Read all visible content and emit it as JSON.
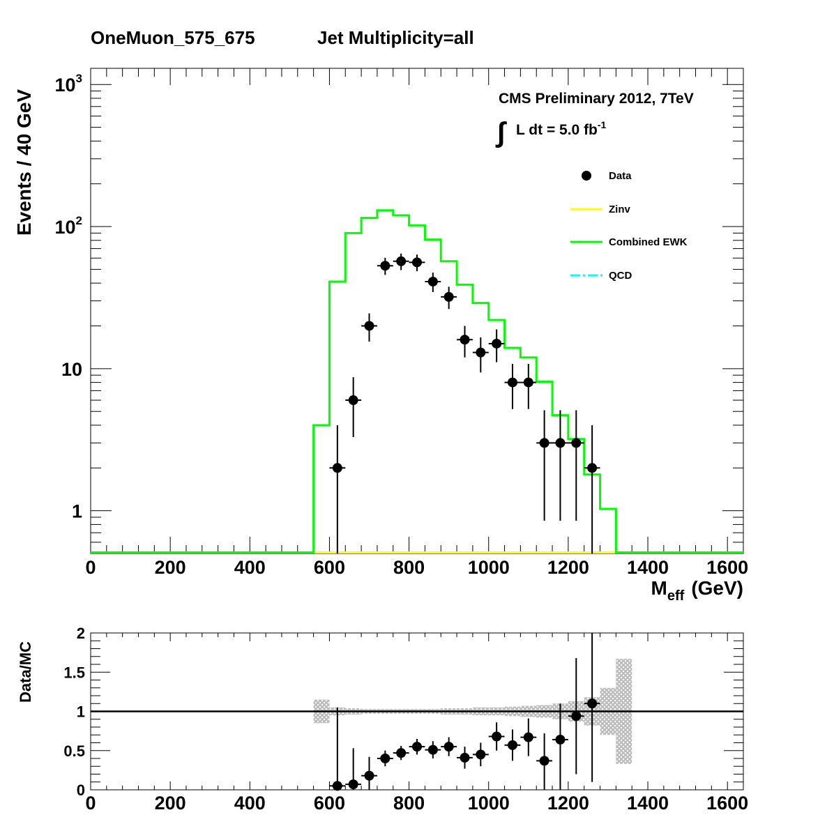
{
  "title": "OneMuon_575_675",
  "subtitle": "Jet Multiplicity=all",
  "cms": {
    "label": "CMS Preliminary 2012, 7TeV",
    "lumi_integral": "∫",
    "lumi_text": "L dt = 5.0 fb",
    "lumi_exp": "-1"
  },
  "colors": {
    "data": "#000000",
    "zinv": "#ffff00",
    "ewk": "#00ff00",
    "qcd": "#00ffff",
    "band": "#bbbbbb"
  },
  "chart_data": [
    {
      "type": "line",
      "ylabel": "Events / 40 GeV",
      "xlabel": "M",
      "xlabel_sub": "eff",
      "xlabel_unit": "(GeV)",
      "xlim": [
        0,
        1640
      ],
      "ylim": [
        0.5,
        1300
      ],
      "yscale": "log",
      "xticks": [
        0,
        200,
        400,
        600,
        800,
        1000,
        1200,
        1400,
        1600
      ],
      "yticks": [
        {
          "v": 1,
          "label": "1"
        },
        {
          "v": 10,
          "label": "10"
        },
        {
          "v": 100,
          "label": "10",
          "exp": "2"
        },
        {
          "v": 1000,
          "label": "10",
          "exp": "3"
        }
      ],
      "legend": [
        {
          "name": "Data",
          "kind": "marker",
          "color": "#000000"
        },
        {
          "name": "Zinv",
          "kind": "line",
          "color": "#ffff00"
        },
        {
          "name": "Combined EWK",
          "kind": "line",
          "color": "#00ff00"
        },
        {
          "name": "QCD",
          "kind": "dashdot",
          "color": "#00ffff"
        }
      ],
      "legend_position": "top-right",
      "bin_width": 40,
      "ewk_bins": [
        {
          "x": 560,
          "y": 4.0
        },
        {
          "x": 600,
          "y": 41
        },
        {
          "x": 640,
          "y": 90
        },
        {
          "x": 680,
          "y": 115
        },
        {
          "x": 720,
          "y": 130
        },
        {
          "x": 760,
          "y": 120
        },
        {
          "x": 800,
          "y": 102
        },
        {
          "x": 840,
          "y": 81
        },
        {
          "x": 880,
          "y": 57
        },
        {
          "x": 920,
          "y": 39
        },
        {
          "x": 960,
          "y": 29
        },
        {
          "x": 1000,
          "y": 22
        },
        {
          "x": 1040,
          "y": 14
        },
        {
          "x": 1080,
          "y": 12
        },
        {
          "x": 1120,
          "y": 8.1
        },
        {
          "x": 1160,
          "y": 4.7
        },
        {
          "x": 1200,
          "y": 3.2
        },
        {
          "x": 1240,
          "y": 1.8
        },
        {
          "x": 1280,
          "y": 1.03
        }
      ],
      "data_points": [
        {
          "x": 620,
          "y": 2,
          "lo": 0.5,
          "hi": 4.0
        },
        {
          "x": 660,
          "y": 6,
          "lo": 3.3,
          "hi": 8.7
        },
        {
          "x": 700,
          "y": 20,
          "lo": 15.5,
          "hi": 24.5
        },
        {
          "x": 740,
          "y": 53,
          "lo": 45.7,
          "hi": 60.3
        },
        {
          "x": 780,
          "y": 57,
          "lo": 49.4,
          "hi": 64.6
        },
        {
          "x": 820,
          "y": 56,
          "lo": 48.5,
          "hi": 63.5
        },
        {
          "x": 860,
          "y": 41,
          "lo": 34.6,
          "hi": 47.4
        },
        {
          "x": 900,
          "y": 32,
          "lo": 26.3,
          "hi": 37.7
        },
        {
          "x": 940,
          "y": 16,
          "lo": 12,
          "hi": 20
        },
        {
          "x": 980,
          "y": 13,
          "lo": 9.4,
          "hi": 16.6
        },
        {
          "x": 1020,
          "y": 15,
          "lo": 11.1,
          "hi": 18.9
        },
        {
          "x": 1060,
          "y": 8,
          "lo": 5.2,
          "hi": 10.8
        },
        {
          "x": 1100,
          "y": 8,
          "lo": 5.2,
          "hi": 10.8
        },
        {
          "x": 1140,
          "y": 3,
          "lo": 0.85,
          "hi": 5.1
        },
        {
          "x": 1180,
          "y": 3,
          "lo": 0.85,
          "hi": 5.1
        },
        {
          "x": 1220,
          "y": 3,
          "lo": 0.85,
          "hi": 5.1
        },
        {
          "x": 1260,
          "y": 2,
          "lo": 0.5,
          "hi": 4.0
        }
      ]
    },
    {
      "type": "scatter",
      "ylabel": "Data/MC",
      "xlim": [
        0,
        1640
      ],
      "ylim": [
        0,
        2
      ],
      "xticks": [
        0,
        200,
        400,
        600,
        800,
        1000,
        1200,
        1400,
        1600
      ],
      "yticks": [
        {
          "v": 0,
          "label": "0"
        },
        {
          "v": 0.5,
          "label": "0.5"
        },
        {
          "v": 1,
          "label": "1"
        },
        {
          "v": 1.5,
          "label": "1.5"
        },
        {
          "v": 2,
          "label": "2"
        }
      ],
      "reference_line": 1,
      "ratio_points": [
        {
          "x": 620,
          "y": 0.05,
          "lo": 0.0,
          "hi": 1.05
        },
        {
          "x": 660,
          "y": 0.07,
          "lo": 0.0,
          "hi": 0.53
        },
        {
          "x": 700,
          "y": 0.18,
          "lo": 0.0,
          "hi": 0.42
        },
        {
          "x": 740,
          "y": 0.4,
          "lo": 0.3,
          "hi": 0.5
        },
        {
          "x": 780,
          "y": 0.47,
          "lo": 0.38,
          "hi": 0.56
        },
        {
          "x": 820,
          "y": 0.55,
          "lo": 0.45,
          "hi": 0.65
        },
        {
          "x": 860,
          "y": 0.51,
          "lo": 0.4,
          "hi": 0.62
        },
        {
          "x": 900,
          "y": 0.55,
          "lo": 0.43,
          "hi": 0.67
        },
        {
          "x": 940,
          "y": 0.41,
          "lo": 0.27,
          "hi": 0.55
        },
        {
          "x": 980,
          "y": 0.45,
          "lo": 0.3,
          "hi": 0.6
        },
        {
          "x": 1020,
          "y": 0.68,
          "lo": 0.5,
          "hi": 0.86
        },
        {
          "x": 1060,
          "y": 0.57,
          "lo": 0.37,
          "hi": 0.77
        },
        {
          "x": 1100,
          "y": 0.67,
          "lo": 0.43,
          "hi": 0.91
        },
        {
          "x": 1140,
          "y": 0.37,
          "lo": 0.0,
          "hi": 0.72
        },
        {
          "x": 1180,
          "y": 0.64,
          "lo": 0.0,
          "hi": 1.1
        },
        {
          "x": 1220,
          "y": 0.94,
          "lo": 0.2,
          "hi": 1.68
        },
        {
          "x": 1260,
          "y": 1.1,
          "lo": 0.1,
          "hi": 2.0
        }
      ],
      "uncertainty_band": [
        {
          "x": 560,
          "lo": 0.85,
          "hi": 1.15
        },
        {
          "x": 600,
          "lo": 0.95,
          "hi": 1.05
        },
        {
          "x": 640,
          "lo": 0.96,
          "hi": 1.04
        },
        {
          "x": 680,
          "lo": 0.97,
          "hi": 1.03
        },
        {
          "x": 720,
          "lo": 0.97,
          "hi": 1.03
        },
        {
          "x": 760,
          "lo": 0.97,
          "hi": 1.03
        },
        {
          "x": 800,
          "lo": 0.97,
          "hi": 1.03
        },
        {
          "x": 840,
          "lo": 0.97,
          "hi": 1.03
        },
        {
          "x": 880,
          "lo": 0.96,
          "hi": 1.04
        },
        {
          "x": 920,
          "lo": 0.96,
          "hi": 1.04
        },
        {
          "x": 960,
          "lo": 0.95,
          "hi": 1.05
        },
        {
          "x": 1000,
          "lo": 0.95,
          "hi": 1.05
        },
        {
          "x": 1040,
          "lo": 0.94,
          "hi": 1.06
        },
        {
          "x": 1080,
          "lo": 0.93,
          "hi": 1.07
        },
        {
          "x": 1120,
          "lo": 0.92,
          "hi": 1.08
        },
        {
          "x": 1160,
          "lo": 0.9,
          "hi": 1.1
        },
        {
          "x": 1200,
          "lo": 0.87,
          "hi": 1.13
        },
        {
          "x": 1240,
          "lo": 0.82,
          "hi": 1.18
        },
        {
          "x": 1280,
          "lo": 0.7,
          "hi": 1.3
        },
        {
          "x": 1320,
          "lo": 0.33,
          "hi": 1.67
        }
      ]
    }
  ]
}
